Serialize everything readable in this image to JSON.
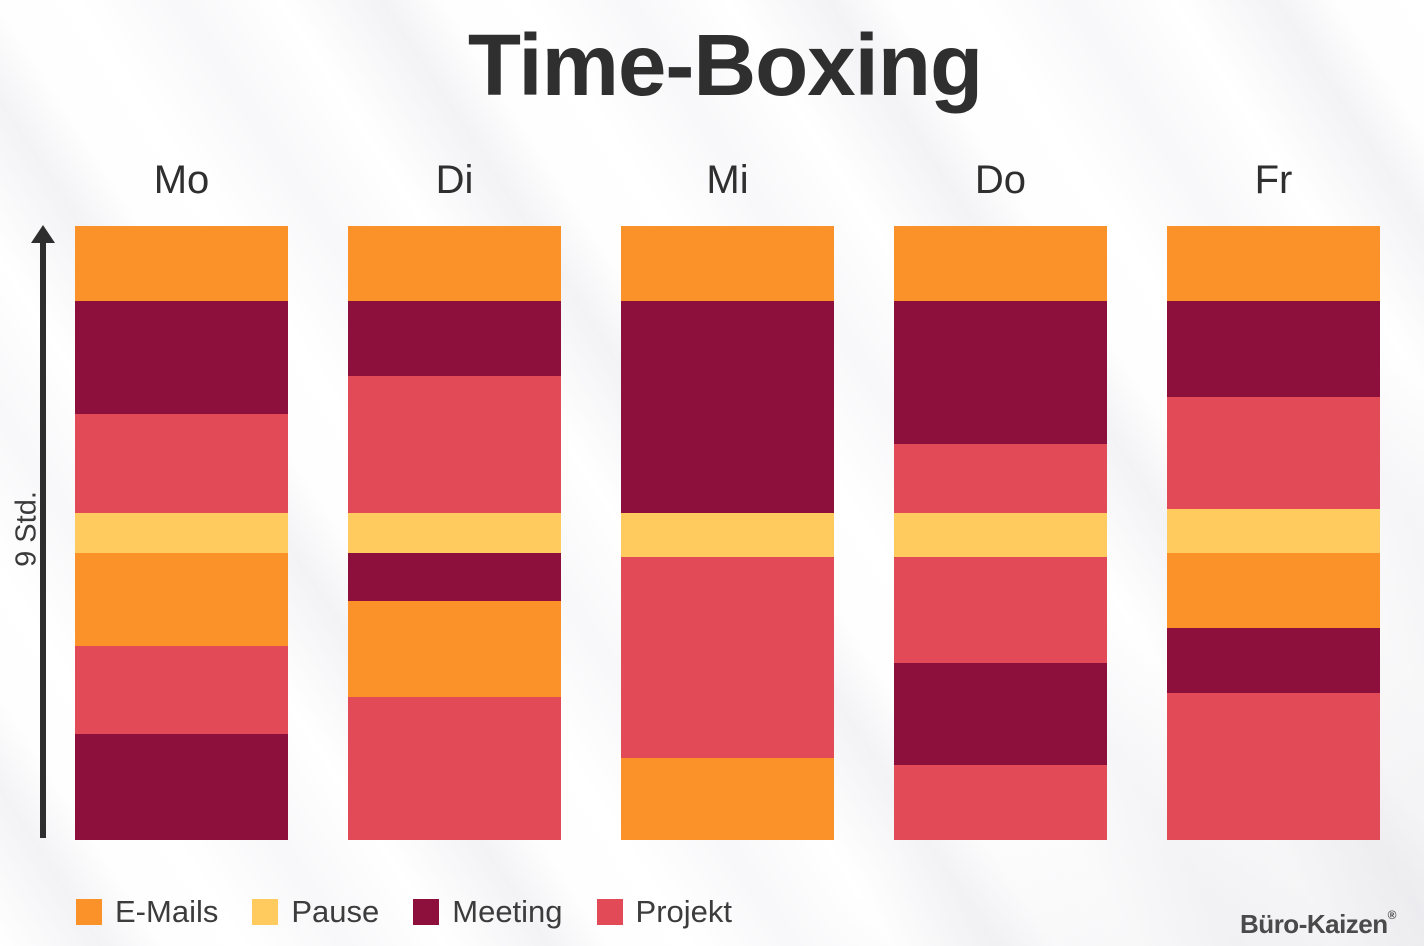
{
  "title": "Time-Boxing",
  "axis": {
    "label": "9 Std."
  },
  "logo": {
    "text": "Büro-Kaizen",
    "registered_mark": "®"
  },
  "palette": {
    "E-Mails": "#FB9129",
    "Pause": "#FFCA5E",
    "Meeting": "#8D0F3C",
    "Projekt": "#E34A58"
  },
  "legend": {
    "position": "bottom",
    "items": [
      {
        "label": "E-Mails",
        "color": "#FB9129"
      },
      {
        "label": "Pause",
        "color": "#FFCA5E"
      },
      {
        "label": "Meeting",
        "color": "#8D0F3C"
      },
      {
        "label": "Projekt",
        "color": "#E34A58"
      }
    ]
  },
  "chart_data": {
    "type": "bar",
    "stacked": true,
    "orientation": "vertical",
    "title": "Time-Boxing",
    "xlabel": "",
    "ylabel": "9 Std.",
    "unit": "Stunden",
    "total_hours_per_day": 9,
    "y_axis": {
      "style": "upward-arrow",
      "tick_labels": [],
      "grid": false
    },
    "legend_position": "bottom",
    "segment_order": "top_to_bottom",
    "categories": [
      "Mo",
      "Di",
      "Mi",
      "Do",
      "Fr"
    ],
    "activities": [
      "E-Mails",
      "Pause",
      "Meeting",
      "Projekt"
    ],
    "days": [
      {
        "label": "Mo",
        "segments": [
          {
            "activity": "E-Mails",
            "hours": 1.1
          },
          {
            "activity": "Meeting",
            "hours": 1.65
          },
          {
            "activity": "Projekt",
            "hours": 1.45
          },
          {
            "activity": "Pause",
            "hours": 0.6
          },
          {
            "activity": "E-Mails",
            "hours": 1.35
          },
          {
            "activity": "Projekt",
            "hours": 1.3
          },
          {
            "activity": "Meeting",
            "hours": 1.55
          }
        ]
      },
      {
        "label": "Di",
        "segments": [
          {
            "activity": "E-Mails",
            "hours": 1.1
          },
          {
            "activity": "Meeting",
            "hours": 1.1
          },
          {
            "activity": "Projekt",
            "hours": 2.0
          },
          {
            "activity": "Pause",
            "hours": 0.6
          },
          {
            "activity": "Meeting",
            "hours": 0.7
          },
          {
            "activity": "E-Mails",
            "hours": 1.4
          },
          {
            "activity": "Projekt",
            "hours": 2.1
          }
        ]
      },
      {
        "label": "Mi",
        "segments": [
          {
            "activity": "E-Mails",
            "hours": 1.1
          },
          {
            "activity": "Meeting",
            "hours": 3.1
          },
          {
            "activity": "Pause",
            "hours": 0.65
          },
          {
            "activity": "Projekt",
            "hours": 2.95
          },
          {
            "activity": "E-Mails",
            "hours": 1.2
          }
        ]
      },
      {
        "label": "Do",
        "segments": [
          {
            "activity": "E-Mails",
            "hours": 1.1
          },
          {
            "activity": "Meeting",
            "hours": 2.1
          },
          {
            "activity": "Projekt",
            "hours": 1.0
          },
          {
            "activity": "Pause",
            "hours": 0.65
          },
          {
            "activity": "Projekt",
            "hours": 1.55
          },
          {
            "activity": "Meeting",
            "hours": 1.5
          },
          {
            "activity": "Projekt",
            "hours": 1.1
          }
        ]
      },
      {
        "label": "Fr",
        "segments": [
          {
            "activity": "E-Mails",
            "hours": 1.1
          },
          {
            "activity": "Meeting",
            "hours": 1.4
          },
          {
            "activity": "Projekt",
            "hours": 1.65
          },
          {
            "activity": "Pause",
            "hours": 0.65
          },
          {
            "activity": "E-Mails",
            "hours": 1.1
          },
          {
            "activity": "Meeting",
            "hours": 0.95
          },
          {
            "activity": "Projekt",
            "hours": 2.15
          }
        ]
      }
    ]
  }
}
